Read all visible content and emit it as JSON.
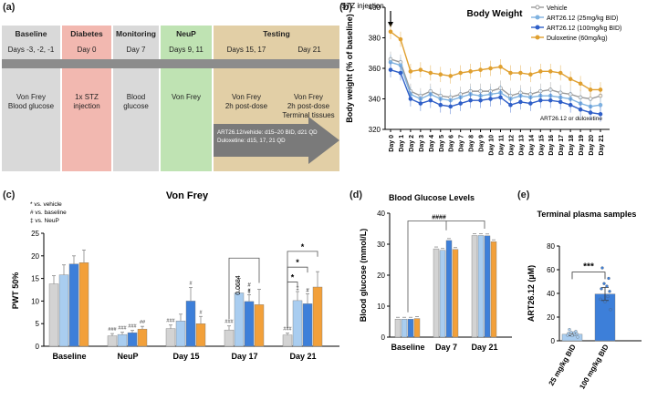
{
  "panel_labels": {
    "a": "(a)",
    "b": "(b)",
    "c": "(c)",
    "d": "(d)",
    "e": "(e)"
  },
  "timeline": {
    "phases": [
      {
        "name": "Baseline",
        "days": "Days -3, -2, -1",
        "desc": [
          "Von Frey",
          "Blood glucose"
        ],
        "color": "#d9d9d9"
      },
      {
        "name": "Diabetes",
        "days": "Day 0",
        "desc": [
          "1x STZ",
          "injection"
        ],
        "color": "#f2b8b0"
      },
      {
        "name": "Monitoring",
        "days": "Day 7",
        "desc": [
          "Blood",
          "glucose"
        ],
        "color": "#d9d9d9"
      },
      {
        "name": "NeuP",
        "days": "Days 9, 11",
        "desc": [
          "Von Frey"
        ],
        "color": "#bfe3b3"
      }
    ],
    "testing": {
      "name": "Testing",
      "color": "#e2cfa6",
      "sub": [
        {
          "days": "Days 15, 17",
          "desc": [
            "Von Frey",
            "2h post-dose"
          ]
        },
        {
          "days": "Day 21",
          "desc": [
            "Von Frey",
            "2h post-dose",
            "Terminal tissues"
          ]
        }
      ],
      "dosing": [
        "ART26.12/vehicle: d15–20 BID, d21 QD",
        "Duloxetine: d15, 17, 21 QD"
      ]
    }
  },
  "chart_data": [
    {
      "id": "body-weight",
      "type": "line",
      "title": "Body Weight",
      "ylabel": "Body weight (% of baseline)",
      "xlabel": "",
      "ylim": [
        320,
        400
      ],
      "yticks": [
        320,
        340,
        360,
        380,
        400
      ],
      "categories": [
        "Day 0",
        "Day 1",
        "Day 2",
        "Day 3",
        "Day 4",
        "Day 5",
        "Day 6",
        "Day 7",
        "Day 8",
        "Day 9",
        "Day 10",
        "Day 11",
        "Day 12",
        "Day 13",
        "Day 14",
        "Day 15",
        "Day 16",
        "Day 17",
        "Day 18",
        "Day 19",
        "Day 20",
        "Day 21"
      ],
      "annotations": [
        "STZ injection",
        "ART26.12 or duloxetine"
      ],
      "legend_position": "top-right",
      "series": [
        {
          "name": "Vehicle",
          "color": "#9a9a9a",
          "values": [
            366,
            364,
            345,
            342,
            345,
            342,
            341,
            343,
            345,
            345,
            345,
            347,
            342,
            344,
            343,
            345,
            346,
            344,
            343,
            341,
            340,
            342
          ]
        },
        {
          "name": "ART26.12 (25mg/kg BID)",
          "color": "#7fb2e0",
          "values": [
            364,
            362,
            343,
            340,
            343,
            340,
            339,
            341,
            343,
            342,
            343,
            344,
            340,
            342,
            341,
            342,
            342,
            341,
            340,
            337,
            335,
            336
          ]
        },
        {
          "name": "ART26.12 (100mg/kg BID)",
          "color": "#2f5fc8",
          "values": [
            359,
            357,
            340,
            337,
            339,
            336,
            335,
            337,
            339,
            339,
            340,
            341,
            336,
            338,
            337,
            339,
            339,
            338,
            336,
            333,
            331,
            330
          ]
        },
        {
          "name": "Duloxetine (60mg/kg)",
          "color": "#e0a030",
          "values": [
            384,
            379,
            358,
            359,
            357,
            356,
            355,
            357,
            358,
            359,
            360,
            361,
            357,
            357,
            356,
            358,
            358,
            357,
            353,
            350,
            346,
            346
          ]
        }
      ]
    },
    {
      "id": "von-frey",
      "type": "bar",
      "title": "Von Frey",
      "ylabel": "PWT 50%",
      "ylim": [
        0,
        25
      ],
      "yticks": [
        0,
        5,
        10,
        15,
        20,
        25
      ],
      "categories": [
        "Baseline",
        "NeuP",
        "Day 15",
        "Day 17",
        "Day 21"
      ],
      "legend_notes": [
        "* vs. vehicle",
        "# vs. baseline",
        "‡ vs. NeuP"
      ],
      "series": [
        {
          "name": "Vehicle",
          "color": "#d3d3d3",
          "values": [
            13.8,
            2.3,
            3.9,
            3.6,
            2.5
          ],
          "errors": [
            1.8,
            0.5,
            0.8,
            0.9,
            0.4
          ]
        },
        {
          "name": "ART26.12 (25mg/kg BID)",
          "color": "#a9cdf0",
          "values": [
            15.8,
            2.6,
            5.6,
            11.8,
            10.1
          ],
          "errors": [
            2.2,
            0.5,
            1.5,
            3.2,
            2.0
          ]
        },
        {
          "name": "ART26.12 (100mg/kg BID)",
          "color": "#3d7fd9",
          "values": [
            18.2,
            3.0,
            10.0,
            9.9,
            9.4
          ],
          "errors": [
            1.8,
            0.5,
            3.0,
            1.5,
            2.2
          ]
        },
        {
          "name": "Duloxetine (60mg/kg)",
          "color": "#f2a03a",
          "values": [
            18.5,
            3.8,
            5.0,
            9.2,
            13.1
          ],
          "errors": [
            2.8,
            0.6,
            1.6,
            3.4,
            3.4
          ]
        }
      ],
      "bar_labels": [
        [
          "",
          "###",
          "###",
          "###",
          "###"
        ],
        [
          "",
          "###",
          "",
          "",
          ""
        ],
        [
          "",
          "###",
          "#",
          "#",
          ""
        ],
        [
          "",
          "##",
          "#",
          "",
          ""
        ]
      ],
      "extra_marks": [
        "##",
        "‡",
        "‡",
        "#",
        "‡",
        "#"
      ],
      "p_value": "0.0684",
      "brackets": [
        "*",
        "*",
        "*"
      ]
    },
    {
      "id": "blood-glucose",
      "type": "bar",
      "title": "Blood Glucose Levels",
      "ylabel": "Blood glucose (mmol/L)",
      "ylim": [
        0,
        40
      ],
      "yticks": [
        0,
        10,
        20,
        30,
        40
      ],
      "categories": [
        "Baseline",
        "Day 7",
        "Day 21"
      ],
      "significance": "####",
      "series": [
        {
          "name": "Vehicle",
          "color": "#d3d3d3",
          "values": [
            5.8,
            28.5,
            32.8
          ]
        },
        {
          "name": "ART26.12 (25mg/kg BID)",
          "color": "#a9cdf0",
          "values": [
            5.8,
            28.0,
            32.8
          ]
        },
        {
          "name": "ART26.12 (100mg/kg BID)",
          "color": "#3d7fd9",
          "values": [
            5.8,
            31.2,
            32.7
          ]
        },
        {
          "name": "Duloxetine (60mg/kg)",
          "color": "#f2a03a",
          "values": [
            6.0,
            28.3,
            30.8
          ]
        }
      ]
    },
    {
      "id": "terminal-plasma",
      "type": "bar",
      "title": "Terminal plasma samples",
      "ylabel": "ART26.12 (µM)",
      "ylim": [
        0,
        80
      ],
      "yticks": [
        0,
        20,
        40,
        60,
        80
      ],
      "categories": [
        "25 mg/kg BID",
        "100 mg/kg BID"
      ],
      "significance": "***",
      "series": [
        {
          "name": "ART26.12",
          "colors": [
            "#a9cdf0",
            "#3d7fd9"
          ],
          "values": [
            5.5,
            39.5
          ],
          "errors": [
            1.2,
            5.5
          ]
        }
      ]
    }
  ]
}
